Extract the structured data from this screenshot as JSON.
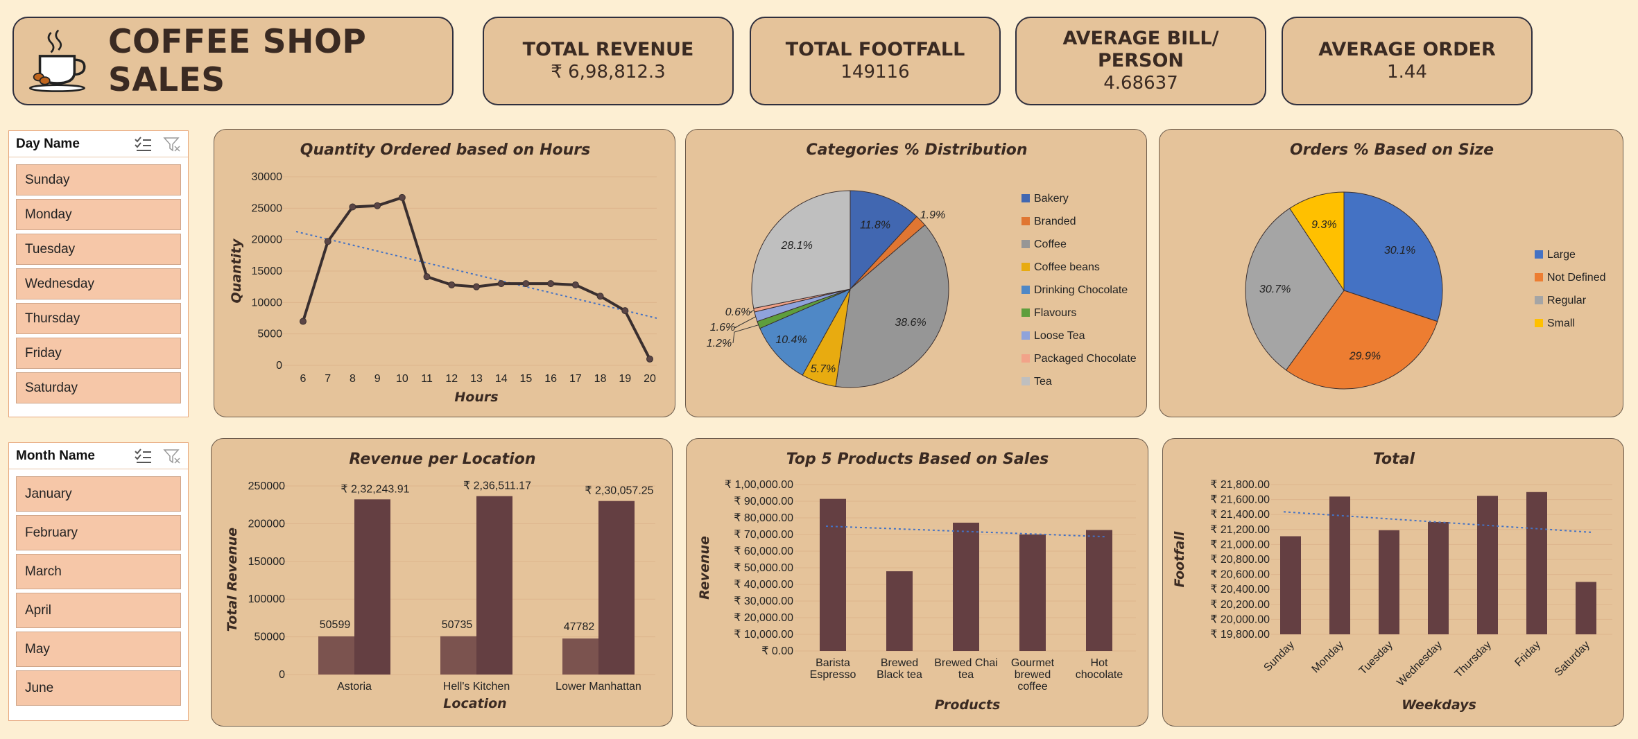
{
  "header": {
    "title": "COFFEE SHOP SALES",
    "kpis": [
      {
        "label": "TOTAL REVENUE",
        "value": "₹ 6,98,812.3"
      },
      {
        "label": "TOTAL FOOTFALL",
        "value": "149116"
      },
      {
        "label": "AVERAGE BILL/ PERSON",
        "value": "4.68637"
      },
      {
        "label": "AVERAGE ORDER",
        "value": "1.44"
      }
    ]
  },
  "slicers": {
    "day": {
      "title": "Day Name",
      "items": [
        "Sunday",
        "Monday",
        "Tuesday",
        "Wednesday",
        "Thursday",
        "Friday",
        "Saturday"
      ]
    },
    "month": {
      "title": "Month Name",
      "items": [
        "January",
        "February",
        "March",
        "April",
        "May",
        "June"
      ]
    }
  },
  "colors": {
    "bar": "#643F42",
    "bar_light": "#7B534F",
    "line": "#3a2f2f",
    "trend": "#4472C4",
    "grid": "#ddb58c"
  },
  "chart_data": [
    {
      "type": "line",
      "title": "Quantity Ordered based on Hours",
      "xlabel": "Hours",
      "ylabel": "Quantity",
      "x": [
        6,
        7,
        8,
        9,
        10,
        11,
        12,
        13,
        14,
        15,
        16,
        17,
        18,
        19,
        20
      ],
      "values": [
        7000,
        19700,
        25200,
        25400,
        26700,
        14100,
        12800,
        12500,
        13000,
        13000,
        13000,
        12800,
        11000,
        8700,
        1000
      ],
      "ylim": [
        0,
        30000
      ],
      "yticks": [
        "30000",
        "25000",
        "20000",
        "15000",
        "10000",
        "5000",
        "0"
      ],
      "trendline": true,
      "grid": true
    },
    {
      "type": "pie",
      "title": "Categories % Distribution",
      "labels": [
        "Bakery",
        "Branded",
        "Coffee",
        "Coffee beans",
        "Drinking Chocolate",
        "Flavours",
        "Loose Tea",
        "Packaged Chocolate",
        "Tea"
      ],
      "values": [
        11.8,
        1.9,
        38.6,
        5.7,
        10.4,
        1.2,
        1.6,
        0.6,
        28.1
      ],
      "value_labels": [
        "11.8%",
        "1.9%",
        "38.6%",
        "5.7%",
        "10.4%",
        "1.2%",
        "1.6%",
        "0.6%",
        "28.1%"
      ],
      "colors": [
        "#4167B1",
        "#E07632",
        "#969696",
        "#E8AB10",
        "#4F88C6",
        "#5E9E3D",
        "#8FA3DB",
        "#F2A389",
        "#BFBFBF"
      ],
      "legend": "right"
    },
    {
      "type": "pie",
      "title": "Orders % Based on Size",
      "labels": [
        "Large",
        "Not Defined",
        "Regular",
        "Small"
      ],
      "values": [
        30.1,
        29.9,
        30.7,
        9.3
      ],
      "value_labels": [
        "30.1%",
        "29.9%",
        "30.7%",
        "9.3%"
      ],
      "colors": [
        "#4472C4",
        "#ED7D31",
        "#A5A5A5",
        "#FFC000"
      ],
      "legend": "right"
    },
    {
      "type": "bar",
      "title": "Revenue per Location",
      "xlabel": "Location",
      "ylabel": "Total Revenue",
      "categories": [
        "Astoria",
        "Hell's Kitchen",
        "Lower Manhattan"
      ],
      "series": [
        {
          "values": [
            50599,
            50735,
            47782
          ],
          "labels": [
            "50599",
            "50735",
            "47782"
          ]
        },
        {
          "values": [
            232243.91,
            236511.17,
            230057.25
          ],
          "labels": [
            "₹ 2,32,243.91",
            "₹ 2,36,511.17",
            "₹ 2,30,057.25"
          ]
        }
      ],
      "ylim": [
        0,
        250000
      ],
      "yticks": [
        "250000",
        "200000",
        "150000",
        "100000",
        "50000",
        "0"
      ]
    },
    {
      "type": "bar",
      "title": "Top 5 Products Based on Sales",
      "xlabel": "Products",
      "ylabel": "Revenue",
      "categories": [
        [
          "Barista",
          "Espresso"
        ],
        [
          "Brewed",
          "Black tea"
        ],
        [
          "Brewed Chai",
          "tea"
        ],
        [
          "Gourmet",
          "brewed",
          "coffee"
        ],
        [
          "Hot",
          "chocolate"
        ]
      ],
      "values": [
        91400,
        47900,
        77100,
        70000,
        72700
      ],
      "ylim": [
        0,
        100000
      ],
      "yticks": [
        "₹ 1,00,000.00",
        "₹ 90,000.00",
        "₹ 80,000.00",
        "₹ 70,000.00",
        "₹ 60,000.00",
        "₹ 50,000.00",
        "₹ 40,000.00",
        "₹ 30,000.00",
        "₹ 20,000.00",
        "₹ 10,000.00",
        "₹ 0.00"
      ],
      "trendline": true
    },
    {
      "type": "bar",
      "title": "Total",
      "xlabel": "Weekdays",
      "ylabel": "Footfall",
      "categories": [
        "Sunday",
        "Monday",
        "Tuesday",
        "Wednesday",
        "Thursday",
        "Friday",
        "Saturday"
      ],
      "values": [
        21110,
        21640,
        21190,
        21300,
        21650,
        21700,
        20500
      ],
      "ylim": [
        19800,
        21800
      ],
      "yticks": [
        "₹ 21,800.00",
        "₹ 21,600.00",
        "₹ 21,400.00",
        "₹ 21,200.00",
        "₹ 21,000.00",
        "₹ 20,800.00",
        "₹ 20,600.00",
        "₹ 20,400.00",
        "₹ 20,200.00",
        "₹ 20,000.00",
        "₹ 19,800.00"
      ],
      "trendline": true
    }
  ]
}
